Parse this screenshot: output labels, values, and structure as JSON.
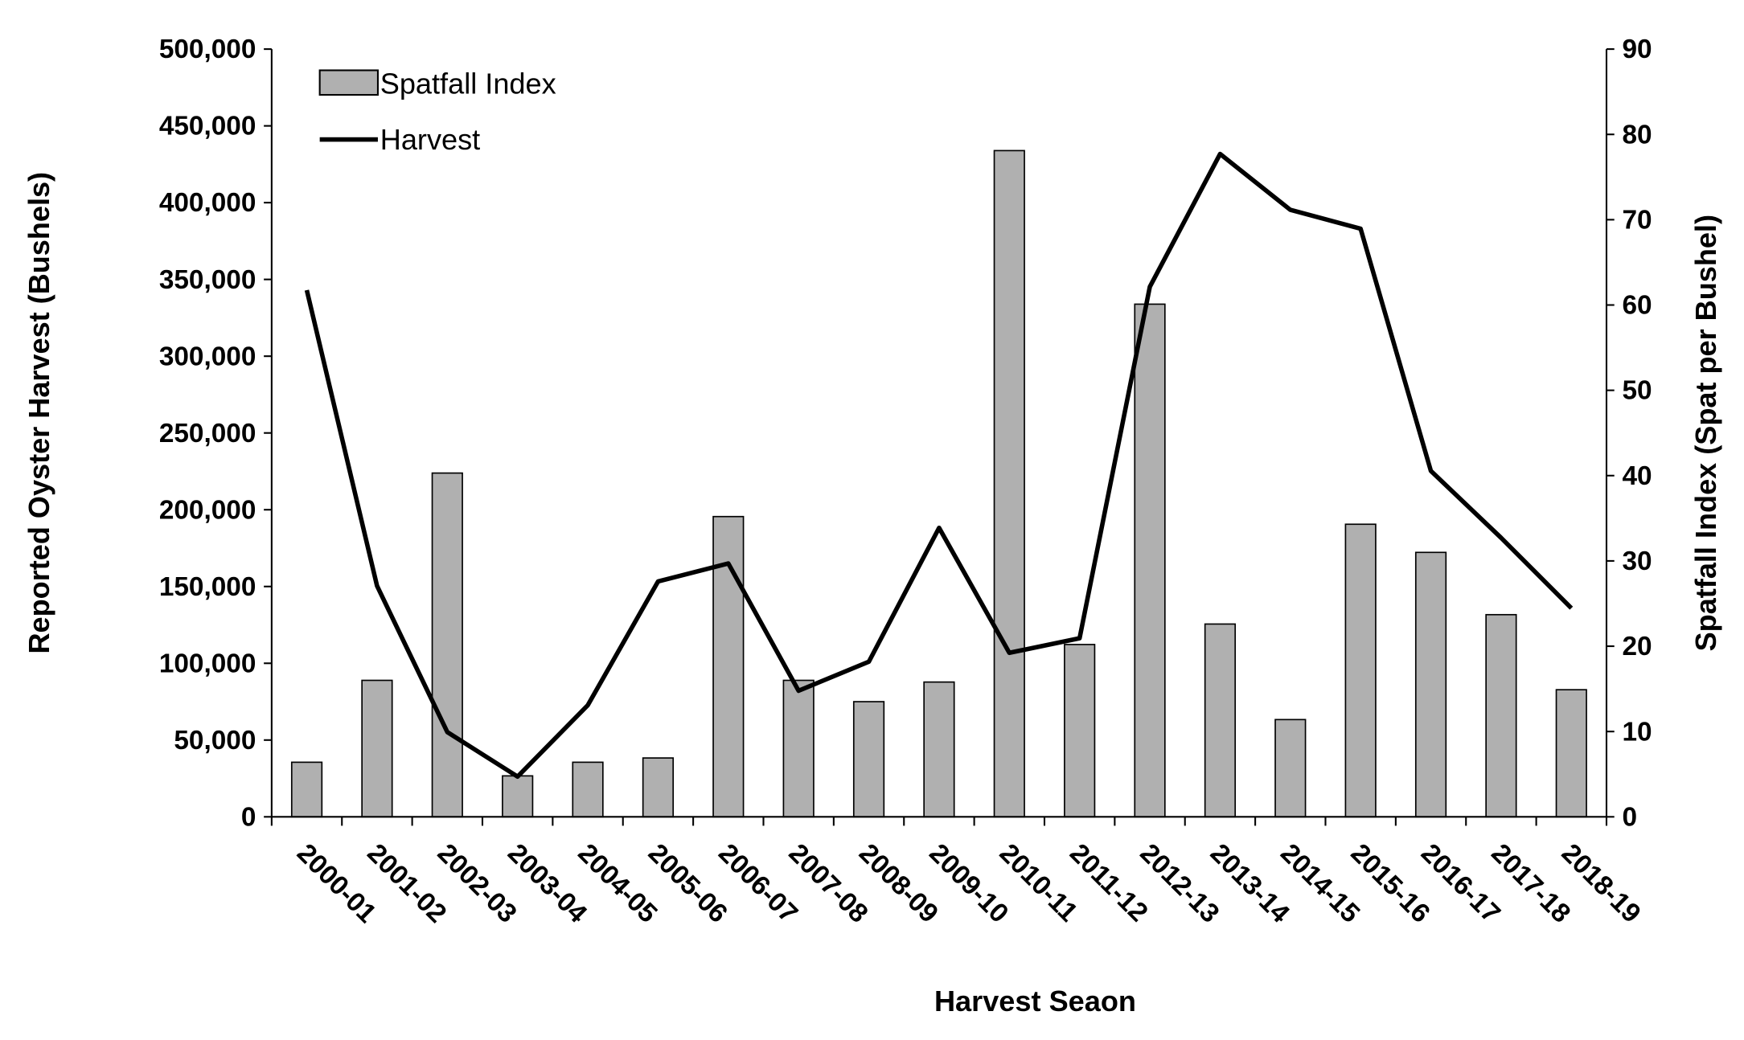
{
  "chart_data": {
    "type": "bar+line",
    "xlabel": "Harvest Seaon",
    "ylabel_left": "Reported Oyster Harvest (Bushels)",
    "ylabel_right": "Spatfall Index (Spat per Bushel)",
    "ylim_left": [
      0,
      500000
    ],
    "ylim_right": [
      0,
      90
    ],
    "yticks_left": [
      "0",
      "50,000",
      "100,000",
      "150,000",
      "200,000",
      "250,000",
      "300,000",
      "350,000",
      "400,000",
      "450,000",
      "500,000"
    ],
    "yticks_right": [
      "0",
      "10",
      "20",
      "30",
      "40",
      "50",
      "60",
      "70",
      "80",
      "90"
    ],
    "grid": false,
    "legend_position": "top-left",
    "categories": [
      "2000-01",
      "2001-02",
      "2002-03",
      "2003-04",
      "2004-05",
      "2005-06",
      "2006-07",
      "2007-08",
      "2008-09",
      "2009-10",
      "2010-11",
      "2011-12",
      "2012-13",
      "2013-14",
      "2014-15",
      "2015-16",
      "2016-17",
      "2017-18",
      "2018-19"
    ],
    "series": [
      {
        "name": "Spatfall Index",
        "type": "bar",
        "axis": "right",
        "color": "#b0b0b0",
        "values": [
          6.4,
          16.0,
          40.3,
          4.8,
          6.4,
          6.9,
          35.2,
          16.0,
          13.5,
          15.8,
          78.1,
          20.2,
          60.1,
          22.6,
          11.4,
          34.3,
          31.0,
          23.7,
          14.9
        ]
      },
      {
        "name": "Harvest",
        "type": "line",
        "axis": "left",
        "color": "#000000",
        "values": [
          343000,
          150400,
          55200,
          26200,
          72700,
          153300,
          165000,
          82100,
          101000,
          188200,
          106800,
          116300,
          345200,
          431700,
          395300,
          383000,
          225300,
          181700,
          135900
        ]
      }
    ]
  }
}
